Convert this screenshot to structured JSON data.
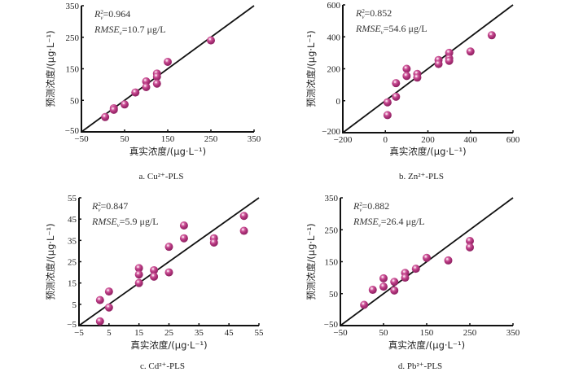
{
  "figure": {
    "xlabel": "真实浓度/(μg·L⁻¹)",
    "ylabel": "预测浓度/(μg·L⁻¹)",
    "point_color": "#b5367f",
    "point_highlight": "#f4d4e6",
    "line_color": "#111111"
  },
  "chart_data": [
    {
      "type": "scatter",
      "caption": "a.  Cu²⁺-PLS",
      "xlabel": "真实浓度/(μg·L⁻¹)",
      "ylabel": "预测浓度/(μg·L⁻¹)",
      "xlim": [
        -50,
        350
      ],
      "ylim": [
        -50,
        350
      ],
      "xticks": [
        -50,
        50,
        150,
        250,
        350
      ],
      "yticks": [
        -50,
        50,
        150,
        250,
        350
      ],
      "reference_line": "y = x",
      "annotations": {
        "r2_label": "R",
        "r2_sub": "v",
        "r2_sup": "2",
        "r2_value": "=0.964",
        "rmse_label": "RMSE",
        "rmse_sub": "v",
        "rmse_value": "=10.7 μg/L"
      },
      "points": [
        [
          5,
          -3
        ],
        [
          25,
          25
        ],
        [
          25,
          20
        ],
        [
          50,
          37
        ],
        [
          75,
          75
        ],
        [
          100,
          110
        ],
        [
          100,
          92
        ],
        [
          125,
          135
        ],
        [
          125,
          125
        ],
        [
          125,
          103
        ],
        [
          150,
          172
        ],
        [
          250,
          240
        ]
      ]
    },
    {
      "type": "scatter",
      "caption": "b.  Zn²⁺-PLS",
      "xlabel": "真实浓度/(μg·L⁻¹)",
      "ylabel": "预测浓度/(μg·L⁻¹)",
      "xlim": [
        -200,
        600
      ],
      "ylim": [
        -200,
        600
      ],
      "xticks": [
        -200,
        0,
        200,
        400,
        600
      ],
      "yticks": [
        -200,
        0,
        200,
        400,
        600
      ],
      "reference_line": "y = x",
      "annotations": {
        "r2_label": "R",
        "r2_sub": "v",
        "r2_sup": "2",
        "r2_value": "=0.852",
        "rmse_label": "RMSE",
        "rmse_sub": "v",
        "rmse_value": "=54.6 μg/L"
      },
      "points": [
        [
          10,
          -10
        ],
        [
          10,
          -90
        ],
        [
          50,
          110
        ],
        [
          50,
          25
        ],
        [
          100,
          200
        ],
        [
          100,
          155
        ],
        [
          150,
          168
        ],
        [
          150,
          145
        ],
        [
          250,
          255
        ],
        [
          250,
          230
        ],
        [
          300,
          300
        ],
        [
          300,
          265
        ],
        [
          300,
          250
        ],
        [
          400,
          308
        ],
        [
          500,
          410
        ]
      ]
    },
    {
      "type": "scatter",
      "caption": "c.  Cd²⁺-PLS",
      "xlabel": "真实浓度/(μg·L⁻¹)",
      "ylabel": "预测浓度/(μg·L⁻¹)",
      "xlim": [
        -5,
        55
      ],
      "ylim": [
        -5,
        55
      ],
      "xticks": [
        -5,
        5,
        15,
        25,
        35,
        45,
        55
      ],
      "yticks": [
        -5,
        5,
        15,
        25,
        35,
        45,
        55
      ],
      "reference_line": "y = x",
      "annotations": {
        "r2_label": "R",
        "r2_sub": "v",
        "r2_sup": "2",
        "r2_value": "=0.847",
        "rmse_label": "RMSE",
        "rmse_sub": "v",
        "rmse_value": "=5.9 μg/L"
      },
      "points": [
        [
          2,
          7
        ],
        [
          2,
          -3
        ],
        [
          5,
          11
        ],
        [
          5,
          3.5
        ],
        [
          15,
          22
        ],
        [
          15,
          19
        ],
        [
          15,
          15
        ],
        [
          20,
          21
        ],
        [
          20,
          18
        ],
        [
          25,
          32
        ],
        [
          25,
          20
        ],
        [
          30,
          42
        ],
        [
          30,
          36
        ],
        [
          40,
          36
        ],
        [
          40,
          34
        ],
        [
          50,
          46.5
        ],
        [
          50,
          39.5
        ]
      ]
    },
    {
      "type": "scatter",
      "caption": "d.  Pb²⁺-PLS",
      "xlabel": "真实浓度/(μg·L⁻¹)",
      "ylabel": "预测浓度/(μg·L⁻¹)",
      "xlim": [
        -50,
        350
      ],
      "ylim": [
        -50,
        350
      ],
      "xticks": [
        -50,
        50,
        150,
        250,
        350
      ],
      "yticks": [
        -50,
        50,
        150,
        250,
        350
      ],
      "reference_line": "y = x",
      "annotations": {
        "r2_label": "R",
        "r2_sub": "v",
        "r2_sup": "2",
        "r2_value": "=0.882",
        "rmse_label": "RMSE",
        "rmse_sub": "v",
        "rmse_value": "=26.4 μg/L"
      },
      "points": [
        [
          5,
          15
        ],
        [
          25,
          62
        ],
        [
          50,
          98
        ],
        [
          50,
          72
        ],
        [
          75,
          87
        ],
        [
          75,
          60
        ],
        [
          100,
          115
        ],
        [
          100,
          100
        ],
        [
          125,
          128
        ],
        [
          150,
          162
        ],
        [
          200,
          154
        ],
        [
          250,
          215
        ],
        [
          250,
          195
        ]
      ]
    }
  ]
}
